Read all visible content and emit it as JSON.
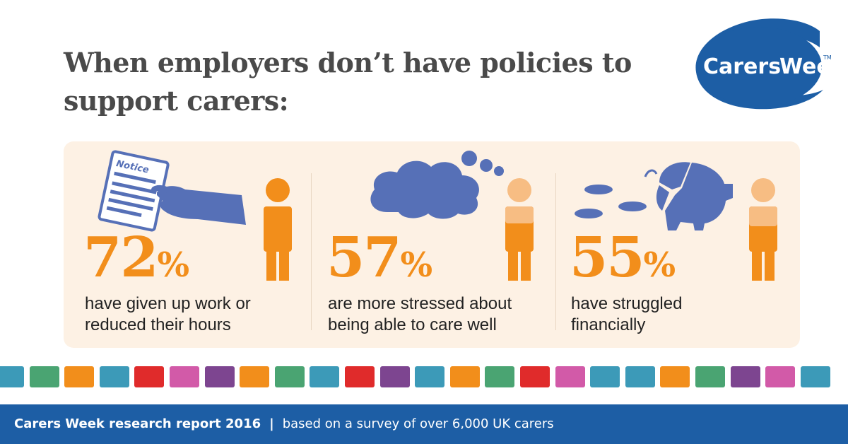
{
  "headline": "When employers don’t have policies to support carers:",
  "logo": {
    "word1": "Carers",
    "word2": "Week",
    "tm": "TM"
  },
  "stats": [
    {
      "number": "72",
      "suffix": "%",
      "line1": "have given up work or",
      "line2": "reduced their hours",
      "notice_label": "Notice"
    },
    {
      "number": "57",
      "suffix": "%",
      "line1": "are more stressed about",
      "line2": "being able to care well"
    },
    {
      "number": "55",
      "suffix": "%",
      "line1": "have struggled",
      "line2": "financially"
    }
  ],
  "footer": {
    "report": "Carers Week research report 2016",
    "separator": "|",
    "survey": "based on a survey of over 6,000 UK carers"
  },
  "colors": {
    "orange": "#f28e1b",
    "light_orange": "#f7bd83",
    "navy": "#1d5ea5",
    "icon_blue": "#5670b7",
    "panel": "#fdf1e4",
    "headline_gray": "#4a4a4a"
  },
  "strip_colors": [
    "#3c9ab8",
    "#4aa472",
    "#f28e1b",
    "#3c9ab8",
    "#e02b2b",
    "#d25aa8",
    "#7d4590",
    "#f28e1b",
    "#4aa472",
    "#3c9ab8",
    "#e02b2b",
    "#7d4590",
    "#3c9ab8",
    "#f28e1b",
    "#4aa472",
    "#e02b2b",
    "#d25aa8",
    "#3c9ab8",
    "#3c9ab8",
    "#f28e1b",
    "#4aa472",
    "#7d4590",
    "#d25aa8",
    "#3c9ab8"
  ]
}
